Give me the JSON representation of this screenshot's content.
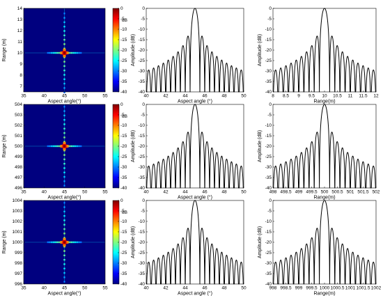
{
  "colors": {
    "line": "#000000",
    "colormap": [
      "#00007f",
      "#0000ff",
      "#007fff",
      "#00ffff",
      "#7fff7f",
      "#ffff00",
      "#ff7f00",
      "#ff0000",
      "#7f0000"
    ]
  },
  "colorbar": {
    "ticks": [
      0,
      -5,
      -10,
      -15,
      -20,
      -25,
      -30,
      -35,
      -40
    ],
    "unit": "dB",
    "range": [
      -40,
      0
    ]
  },
  "chart_data": [
    {
      "type": "heatmap",
      "panel": "r1c1",
      "xlabel": "Aspect angle(°)",
      "ylabel": "Range (m)",
      "xlim": [
        35,
        55
      ],
      "ylim": [
        6.5,
        14
      ],
      "xticks": [
        35,
        40,
        45,
        50,
        55
      ],
      "yticks": [
        7,
        8,
        9,
        10,
        11,
        12,
        13,
        14
      ],
      "peak": {
        "x": 45,
        "y": 10,
        "value": 0
      }
    },
    {
      "type": "line",
      "panel": "r1c2",
      "xlabel": "Aspect angle (°)",
      "ylabel": "Amplitude (dB)",
      "xlim": [
        40,
        50
      ],
      "ylim": [
        -40,
        0
      ],
      "xticks": [
        40,
        42,
        44,
        46,
        48,
        50
      ],
      "yticks": [
        0,
        -5,
        -10,
        -15,
        -20,
        -25,
        -30,
        -35,
        -40
      ],
      "center": 45,
      "mainlobe_halfwidth": 0.5,
      "first_sidelobe_db": -13,
      "n_sidelobes_per_side": 10
    },
    {
      "type": "line",
      "panel": "r1c3",
      "xlabel": "Range(m)",
      "ylabel": "Amplitude (dB)",
      "xlim": [
        8,
        12
      ],
      "ylim": [
        -40,
        0
      ],
      "xticks": [
        "8",
        "8.5",
        "9",
        "9.5",
        "10",
        "10.5",
        "11",
        "11.5",
        "12"
      ],
      "yticks": [
        0,
        -5,
        -10,
        -15,
        -20,
        -25,
        -30,
        -35,
        -40
      ],
      "center": 10,
      "mainlobe_halfwidth": 0.2,
      "first_sidelobe_db": -13,
      "n_sidelobes_per_side": 10
    },
    {
      "type": "heatmap",
      "panel": "r2c1",
      "xlabel": "Aspect angle(°)",
      "ylabel": "Range (m)",
      "xlim": [
        35,
        55
      ],
      "ylim": [
        496,
        504
      ],
      "xticks": [
        35,
        40,
        45,
        50,
        55
      ],
      "yticks": [
        496,
        497,
        498,
        499,
        500,
        501,
        502,
        503,
        504
      ],
      "peak": {
        "x": 45,
        "y": 500,
        "value": 0
      }
    },
    {
      "type": "line",
      "panel": "r2c2",
      "xlabel": "Aspect angle (°)",
      "ylabel": "Amplitude (dB)",
      "xlim": [
        40,
        50
      ],
      "ylim": [
        -40,
        0
      ],
      "xticks": [
        40,
        42,
        44,
        46,
        48,
        50
      ],
      "yticks": [
        0,
        -5,
        -10,
        -15,
        -20,
        -25,
        -30,
        -35,
        -40
      ],
      "center": 45,
      "mainlobe_halfwidth": 0.5,
      "first_sidelobe_db": -13,
      "n_sidelobes_per_side": 10
    },
    {
      "type": "line",
      "panel": "r2c3",
      "xlabel": "Range(m)",
      "ylabel": "Amplitude (dB)",
      "xlim": [
        498,
        502
      ],
      "ylim": [
        -40,
        0
      ],
      "xticks": [
        "498",
        "498.5",
        "499",
        "499.5",
        "500",
        "500.5",
        "501",
        "501.5",
        "502"
      ],
      "yticks": [
        0,
        -5,
        -10,
        -15,
        -20,
        -25,
        -30,
        -35,
        -40
      ],
      "center": 500,
      "mainlobe_halfwidth": 0.2,
      "first_sidelobe_db": -13,
      "n_sidelobes_per_side": 10
    },
    {
      "type": "heatmap",
      "panel": "r3c1",
      "xlabel": "Aspect angle(°)",
      "ylabel": "Range (m)",
      "xlim": [
        35,
        55
      ],
      "ylim": [
        996,
        1004
      ],
      "xticks": [
        35,
        40,
        45,
        50,
        55
      ],
      "yticks": [
        996,
        997,
        998,
        999,
        1000,
        1001,
        1002,
        1003,
        1004
      ],
      "peak": {
        "x": 45,
        "y": 1000,
        "value": 0
      }
    },
    {
      "type": "line",
      "panel": "r3c2",
      "xlabel": "Aspect angle (°)",
      "ylabel": "Amplitude (dB)",
      "xlim": [
        40,
        50
      ],
      "ylim": [
        -40,
        0
      ],
      "xticks": [
        40,
        42,
        44,
        46,
        48,
        50
      ],
      "yticks": [
        0,
        -5,
        -10,
        -15,
        -20,
        -25,
        -30,
        -35,
        -40
      ],
      "center": 45,
      "mainlobe_halfwidth": 0.5,
      "first_sidelobe_db": -13,
      "n_sidelobes_per_side": 10
    },
    {
      "type": "line",
      "panel": "r3c3",
      "xlabel": "Range(m)",
      "ylabel": "Amplitude (dB)",
      "xlim": [
        998,
        1002
      ],
      "ylim": [
        -40,
        0
      ],
      "xticks": [
        "998",
        "998.5",
        "999",
        "999.5",
        "1000",
        "1000.5",
        "1001",
        "1001.5",
        "1002"
      ],
      "yticks": [
        0,
        -5,
        -10,
        -15,
        -20,
        -25,
        -30,
        -35,
        -40
      ],
      "center": 1000,
      "mainlobe_halfwidth": 0.2,
      "first_sidelobe_db": -13,
      "n_sidelobes_per_side": 10
    }
  ]
}
